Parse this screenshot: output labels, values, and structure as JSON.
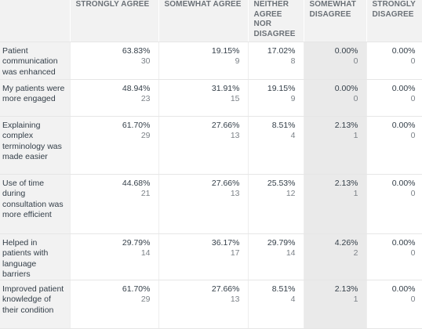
{
  "columns": [
    "STRONGLY AGREE",
    "SOMEWHAT AGREE",
    "NEITHER AGREE NOR DISAGREE",
    "SOMEWHAT DISAGREE",
    "STRONGLY DISAGREE"
  ],
  "rows": [
    {
      "label": "Patient communication was enhanced",
      "cells": [
        {
          "pct": "63.83%",
          "n": "30"
        },
        {
          "pct": "19.15%",
          "n": "9"
        },
        {
          "pct": "17.02%",
          "n": "8"
        },
        {
          "pct": "0.00%",
          "n": "0"
        },
        {
          "pct": "0.00%",
          "n": "0"
        }
      ]
    },
    {
      "label": "My patients were more engaged",
      "cells": [
        {
          "pct": "48.94%",
          "n": "23"
        },
        {
          "pct": "31.91%",
          "n": "15"
        },
        {
          "pct": "19.15%",
          "n": "9"
        },
        {
          "pct": "0.00%",
          "n": "0"
        },
        {
          "pct": "0.00%",
          "n": "0"
        }
      ]
    },
    {
      "label": "Explaining complex terminology was made easier",
      "cells": [
        {
          "pct": "61.70%",
          "n": "29"
        },
        {
          "pct": "27.66%",
          "n": "13"
        },
        {
          "pct": "8.51%",
          "n": "4"
        },
        {
          "pct": "2.13%",
          "n": "1"
        },
        {
          "pct": "0.00%",
          "n": "0"
        }
      ]
    },
    {
      "label": "Use of time during consultation was more efficient",
      "cells": [
        {
          "pct": "44.68%",
          "n": "21"
        },
        {
          "pct": "27.66%",
          "n": "13"
        },
        {
          "pct": "25.53%",
          "n": "12"
        },
        {
          "pct": "2.13%",
          "n": "1"
        },
        {
          "pct": "0.00%",
          "n": "0"
        }
      ]
    },
    {
      "label": "Helped in patients with language barriers",
      "cells": [
        {
          "pct": "29.79%",
          "n": "14"
        },
        {
          "pct": "36.17%",
          "n": "17"
        },
        {
          "pct": "29.79%",
          "n": "14"
        },
        {
          "pct": "4.26%",
          "n": "2"
        },
        {
          "pct": "0.00%",
          "n": "0"
        }
      ]
    },
    {
      "label": "Improved patient knowledge of their condition",
      "cells": [
        {
          "pct": "61.70%",
          "n": "29"
        },
        {
          "pct": "27.66%",
          "n": "13"
        },
        {
          "pct": "8.51%",
          "n": "4"
        },
        {
          "pct": "2.13%",
          "n": "1"
        },
        {
          "pct": "0.00%",
          "n": "0"
        }
      ]
    }
  ]
}
